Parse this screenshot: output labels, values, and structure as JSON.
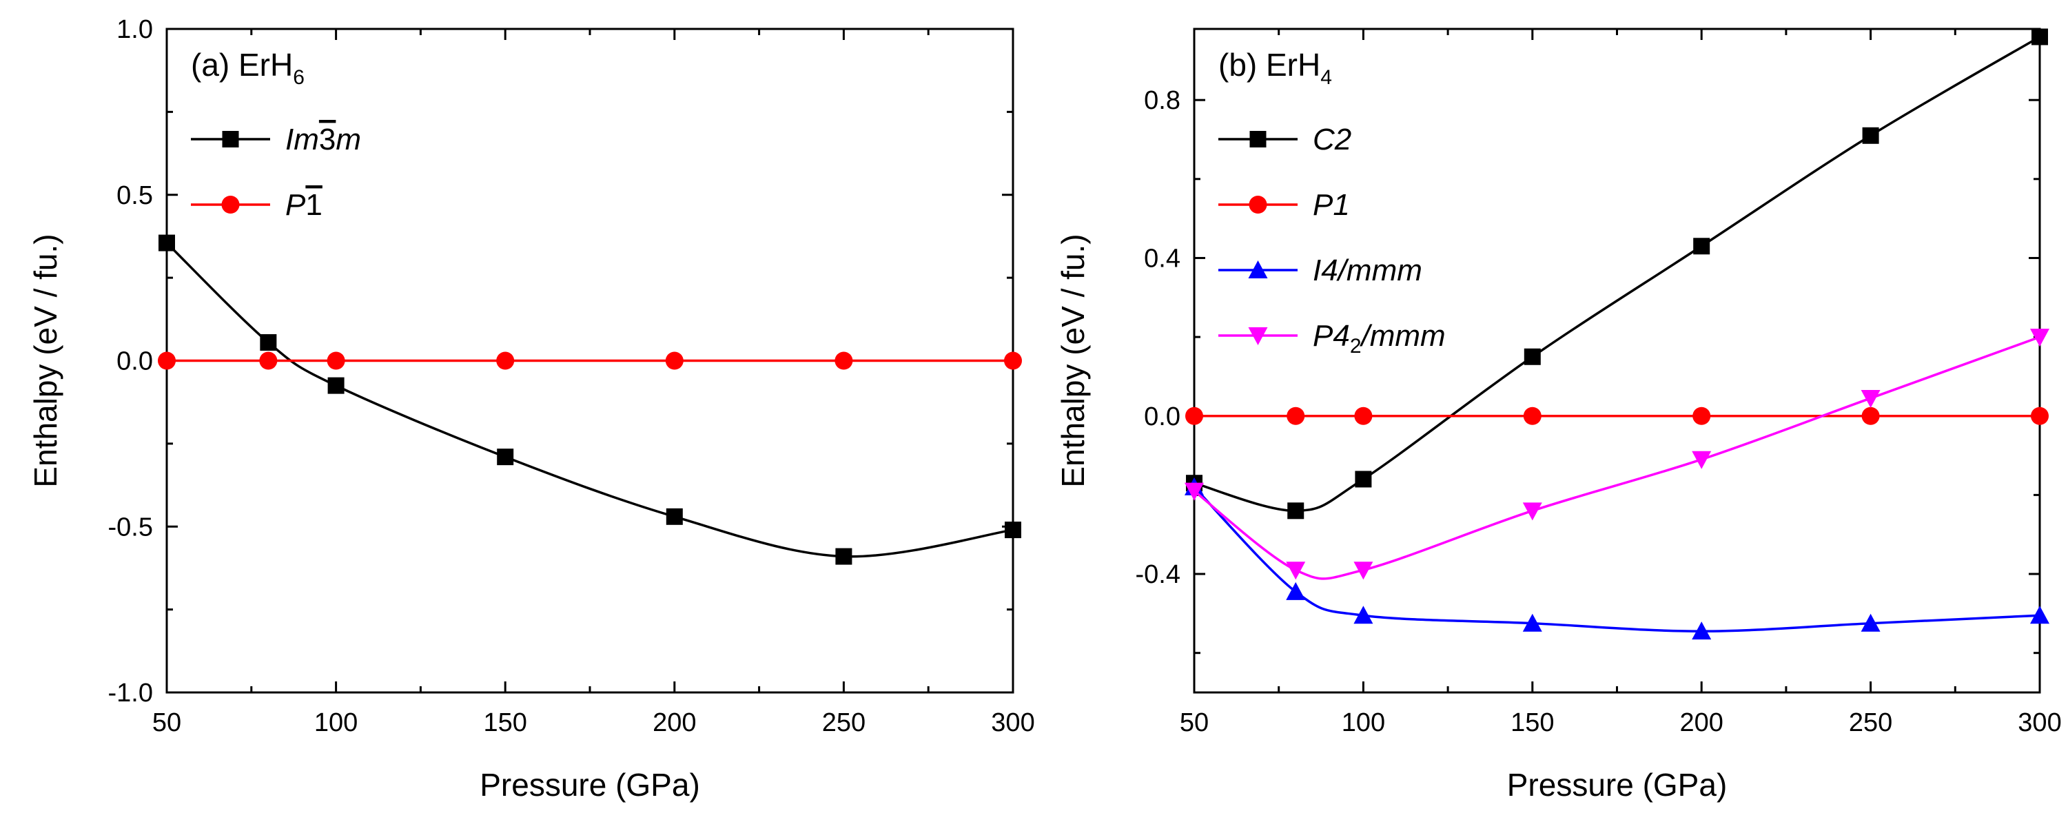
{
  "chart_data": [
    {
      "type": "line",
      "panel_label": "(a) ErH",
      "panel_label_sub": "6",
      "xlabel": "Pressure (GPa)",
      "ylabel": "Enthalpy (eV / fu.)",
      "xlim": [
        50,
        300
      ],
      "ylim": [
        -1.0,
        1.0
      ],
      "xticks": [
        50,
        100,
        150,
        200,
        250,
        300
      ],
      "xtick_labels": [
        "50",
        "100",
        "150",
        "200",
        "250",
        "300"
      ],
      "yticks": [
        -1.0,
        -0.5,
        0.0,
        0.5,
        1.0
      ],
      "ytick_labels": [
        "-1.0",
        "-0.5",
        "0.0",
        "0.5",
        "1.0"
      ],
      "legend_position": "top-left",
      "series": [
        {
          "name": "Im3m",
          "name_main": "Im",
          "name_overbar": "3",
          "name_tail": "m",
          "color": "#000000",
          "marker": "square",
          "x": [
            50,
            80,
            100,
            150,
            200,
            250,
            300
          ],
          "values": [
            0.355,
            0.055,
            -0.075,
            -0.29,
            -0.47,
            -0.59,
            -0.51
          ]
        },
        {
          "name": "P1",
          "name_main": "P",
          "name_overbar": "1",
          "name_tail": "",
          "color": "#ff0000",
          "marker": "circle",
          "x": [
            50,
            80,
            100,
            150,
            200,
            250,
            300
          ],
          "values": [
            0,
            0,
            0,
            0,
            0,
            0,
            0
          ]
        }
      ]
    },
    {
      "type": "line",
      "panel_label": "(b) ErH",
      "panel_label_sub": "4",
      "xlabel": "Pressure (GPa)",
      "ylabel": "Enthalpy (eV / fu.)",
      "xlim": [
        50,
        300
      ],
      "ylim": [
        -0.7,
        0.98
      ],
      "xticks": [
        50,
        100,
        150,
        200,
        250,
        300
      ],
      "xtick_labels": [
        "50",
        "100",
        "150",
        "200",
        "250",
        "300"
      ],
      "yticks": [
        -0.4,
        0.0,
        0.4,
        0.8
      ],
      "ytick_labels": [
        "-0.4",
        "0.0",
        "0.4",
        "0.8"
      ],
      "legend_position": "top-left",
      "series": [
        {
          "name": "C2",
          "name_main": "C2",
          "name_sub": "",
          "name_tail": "",
          "color": "#000000",
          "marker": "square",
          "x": [
            50,
            80,
            100,
            150,
            200,
            250,
            300
          ],
          "values": [
            -0.17,
            -0.24,
            -0.16,
            0.15,
            0.43,
            0.71,
            0.96
          ]
        },
        {
          "name": "P1",
          "name_main": "P1",
          "name_sub": "",
          "name_tail": "",
          "color": "#ff0000",
          "marker": "circle",
          "x": [
            50,
            80,
            100,
            150,
            200,
            250,
            300
          ],
          "values": [
            0,
            0,
            0,
            0,
            0,
            0,
            0
          ]
        },
        {
          "name": "I4/mmm",
          "name_main": "I4/mmm",
          "name_sub": "",
          "name_tail": "",
          "color": "#0000ff",
          "marker": "triangle-up",
          "x": [
            50,
            80,
            100,
            150,
            200,
            250,
            300
          ],
          "values": [
            -0.18,
            -0.445,
            -0.505,
            -0.525,
            -0.545,
            -0.525,
            -0.505
          ]
        },
        {
          "name": "P42/mmm",
          "name_main": "P4",
          "name_sub": "2",
          "name_tail": "/mmm",
          "color": "#ff00ff",
          "marker": "triangle-down",
          "x": [
            50,
            80,
            100,
            150,
            200,
            250,
            300
          ],
          "values": [
            -0.19,
            -0.39,
            -0.39,
            -0.24,
            -0.11,
            0.045,
            0.2
          ]
        }
      ]
    }
  ]
}
